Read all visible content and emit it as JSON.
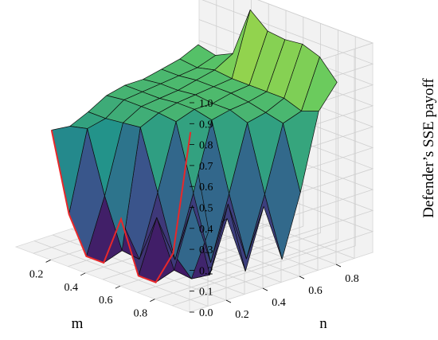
{
  "chart_data": {
    "type": "surface3d",
    "title": "",
    "xlabel": "m",
    "ylabel": "n",
    "zlabel": "Defender’s SSE payoff",
    "x": [
      0.1,
      0.2,
      0.3,
      0.4,
      0.5,
      0.6,
      0.7,
      0.8,
      0.9
    ],
    "y": [
      0.1,
      0.2,
      0.3,
      0.4,
      0.5,
      0.6,
      0.7,
      0.8,
      0.9
    ],
    "x_ticks": [
      "0.2",
      "0.4",
      "0.6",
      "0.8"
    ],
    "y_ticks": [
      "0.2",
      "0.4",
      "0.6",
      "0.8"
    ],
    "z_ticks": [
      "0.0",
      "0.1",
      "0.2",
      "0.3",
      "0.4",
      "0.5",
      "0.6",
      "0.7",
      "0.8",
      "0.9",
      "1.0"
    ],
    "zlim": [
      0,
      1
    ],
    "z": [
      [
        0.56,
        0.55,
        0.59,
        0.64,
        0.66,
        0.66,
        0.68,
        0.7,
        0.74
      ],
      [
        0.19,
        0.57,
        0.59,
        0.65,
        0.66,
        0.67,
        0.68,
        0.69,
        0.72
      ],
      [
        0.02,
        0.28,
        0.6,
        0.65,
        0.66,
        0.67,
        0.69,
        0.71,
        0.76
      ],
      [
        0.02,
        0.05,
        0.61,
        0.65,
        0.67,
        0.68,
        0.69,
        0.7,
        1.0
      ],
      [
        0.26,
        0.04,
        0.33,
        0.64,
        0.67,
        0.67,
        0.69,
        0.7,
        0.93
      ],
      [
        0.02,
        0.27,
        0.04,
        0.33,
        0.65,
        0.67,
        0.68,
        0.7,
        0.92
      ],
      [
        0.02,
        0.05,
        0.33,
        0.03,
        0.33,
        0.64,
        0.66,
        0.7,
        0.93
      ],
      [
        0.19,
        0.04,
        0.03,
        0.34,
        0.05,
        0.33,
        0.64,
        0.67,
        0.9
      ],
      [
        0.8,
        0.3,
        0.33,
        0.05,
        0.33,
        0.05,
        0.34,
        0.7,
        0.81
      ]
    ],
    "highlight_line": {
      "color": "#e8282a",
      "points": [
        {
          "m": 0.1,
          "n": 0.1,
          "z": 0.56
        },
        {
          "m": 0.2,
          "n": 0.1,
          "z": 0.19
        },
        {
          "m": 0.3,
          "n": 0.1,
          "z": 0.02
        },
        {
          "m": 0.4,
          "n": 0.1,
          "z": 0.02
        },
        {
          "m": 0.5,
          "n": 0.1,
          "z": 0.26
        },
        {
          "m": 0.6,
          "n": 0.1,
          "z": 0.02
        },
        {
          "m": 0.7,
          "n": 0.1,
          "z": 0.02
        },
        {
          "m": 0.8,
          "n": 0.1,
          "z": 0.19
        },
        {
          "m": 0.9,
          "n": 0.1,
          "z": 0.8
        }
      ]
    },
    "colormap": [
      "#440154",
      "#3b528b",
      "#21918c",
      "#5ec962",
      "#fde725"
    ],
    "grid": true,
    "pane_color": "#f2f2f2"
  }
}
